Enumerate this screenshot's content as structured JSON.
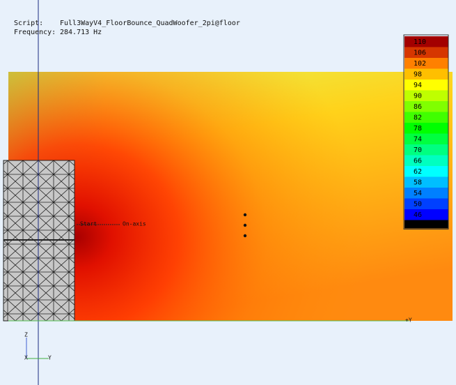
{
  "header": {
    "script_label": "Script:",
    "script_name": "Full3WayV4_FloorBounce_QuadWoofer_2pi@floor",
    "frequency_label": "Frequency:",
    "frequency_value": "284.713 Hz"
  },
  "colorbar": {
    "labels": [
      110,
      106,
      102,
      98,
      94,
      90,
      86,
      82,
      78,
      74,
      70,
      66,
      62,
      58,
      54,
      50,
      46
    ]
  },
  "annotations": {
    "start": "Start",
    "on_axis": "On-axis",
    "plus_y": "+Y"
  },
  "triad": {
    "z": "Z",
    "x": "X",
    "y": "Y"
  }
}
